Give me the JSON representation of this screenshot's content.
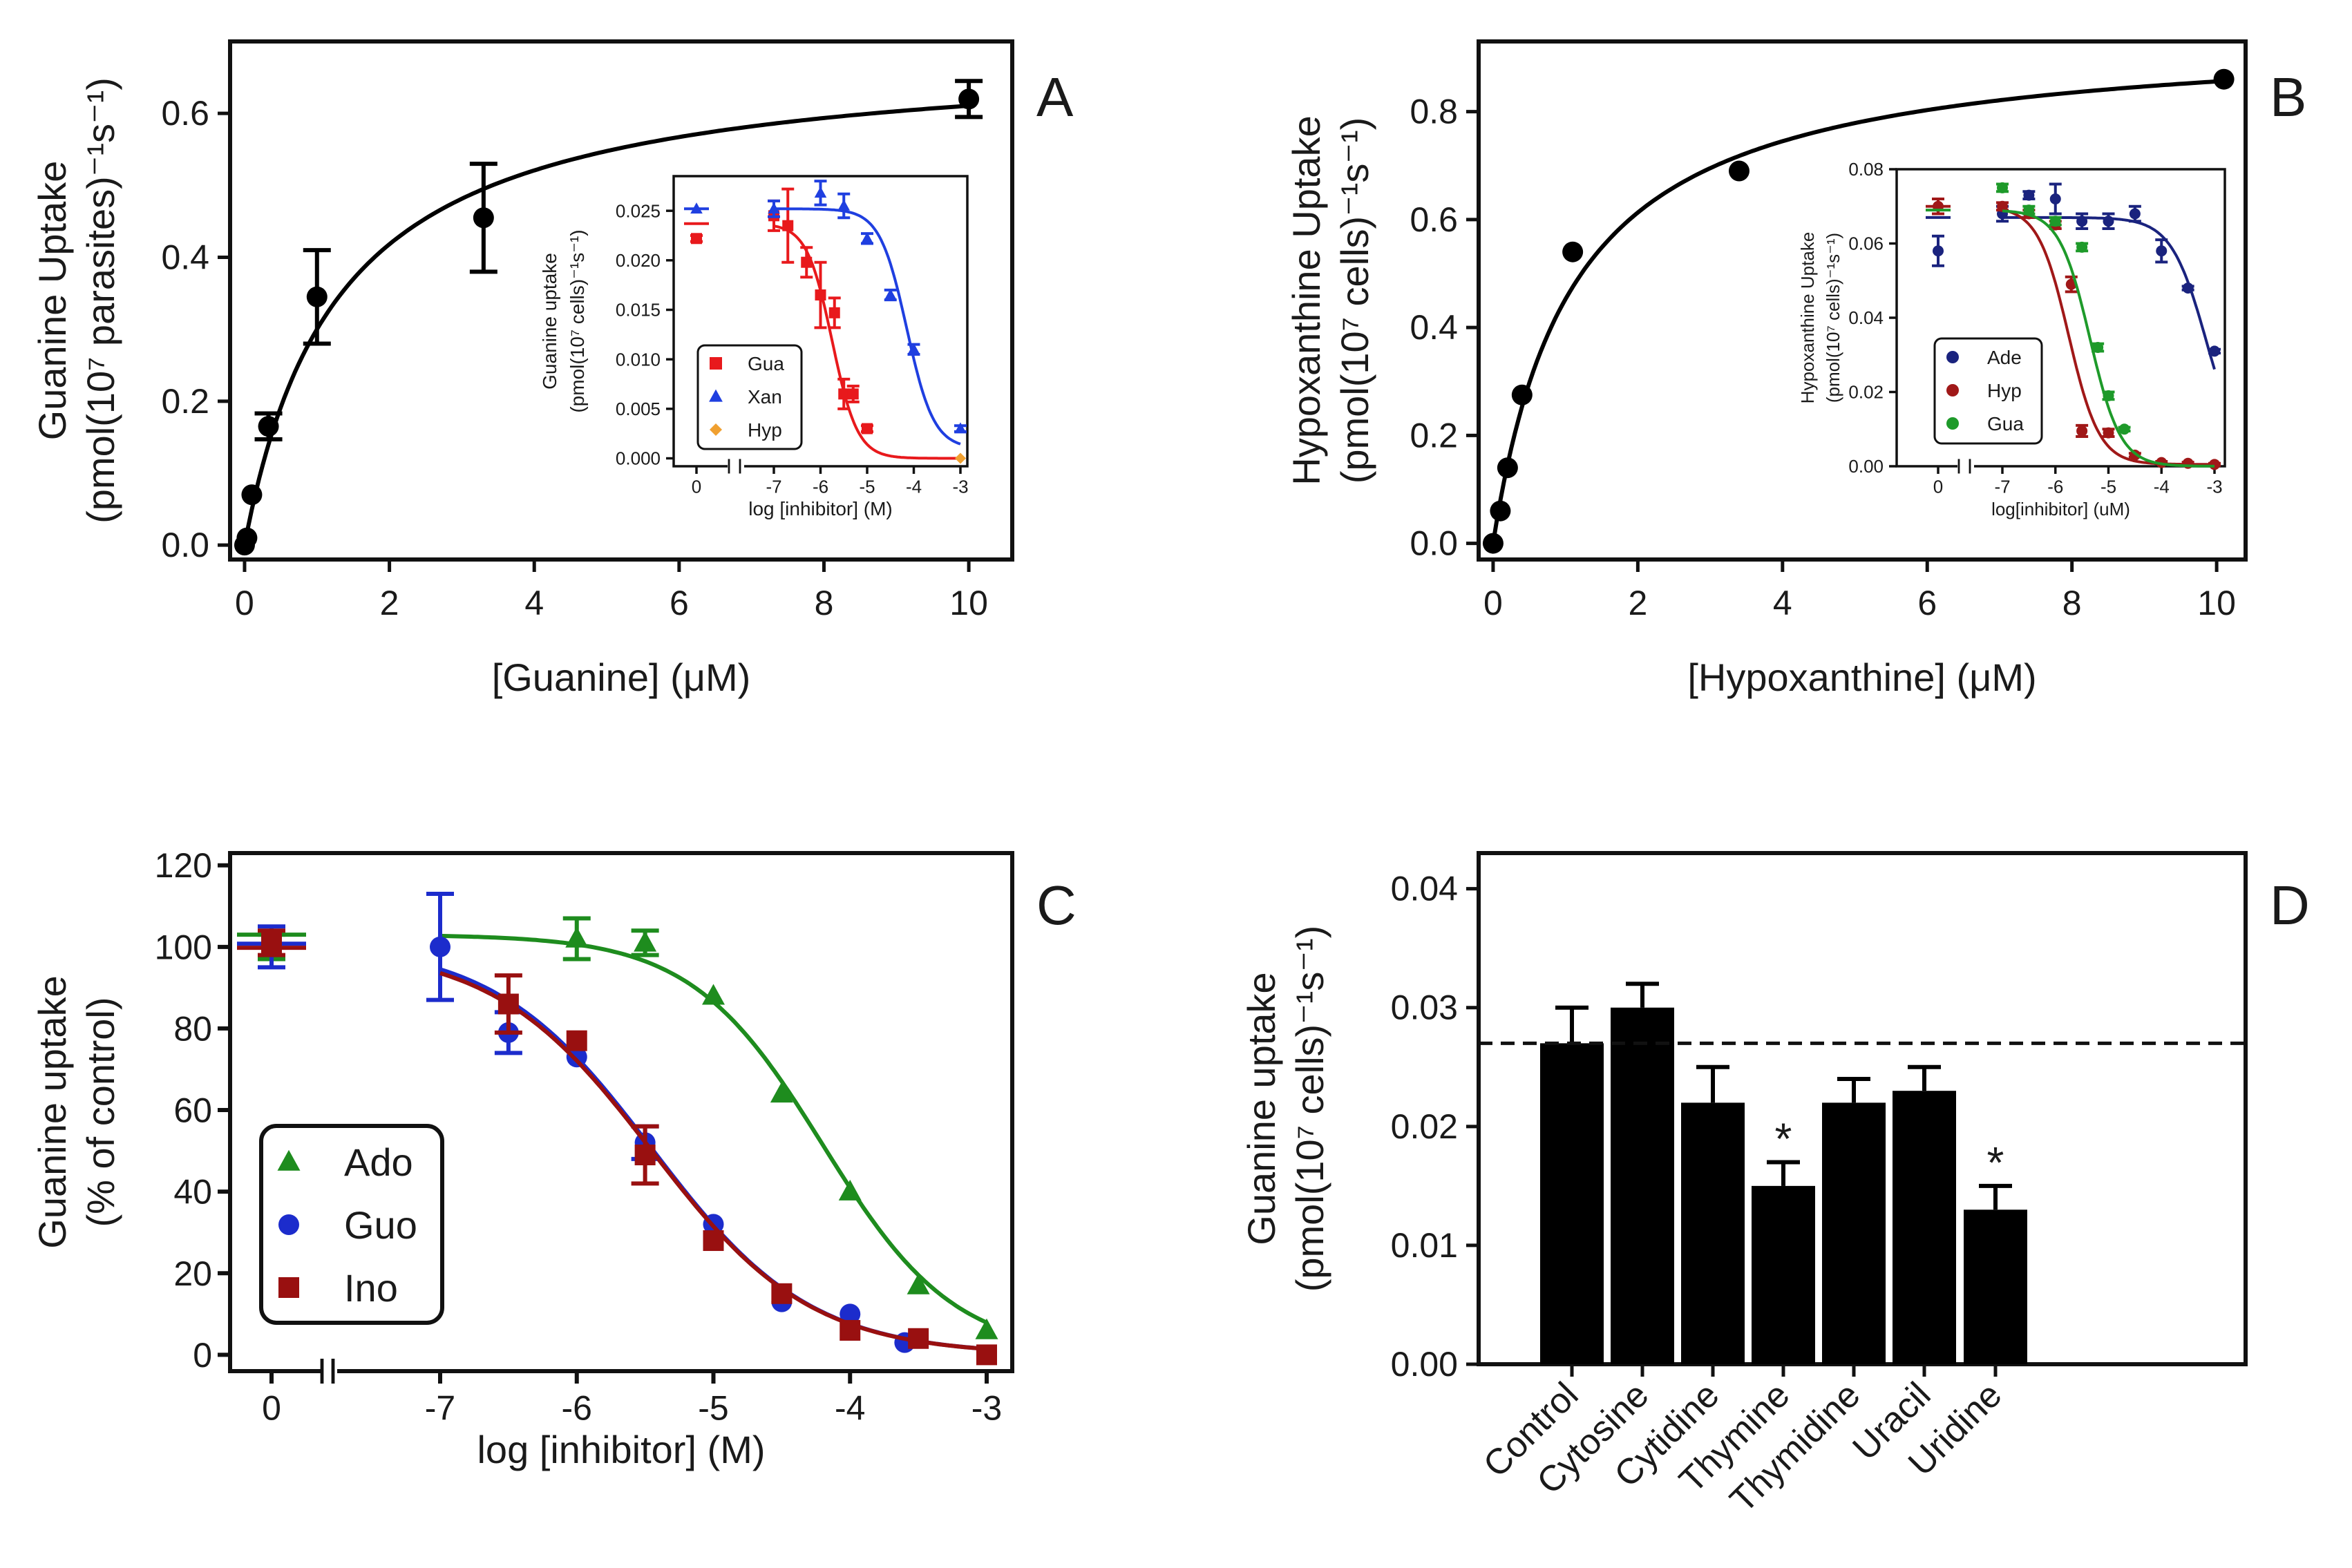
{
  "panels": {
    "A": {
      "label": "A"
    },
    "B": {
      "label": "B"
    },
    "C": {
      "label": "C"
    },
    "D": {
      "label": "D"
    }
  },
  "chart_data": [
    {
      "id": "A",
      "type": "scatter",
      "title": "",
      "xlabel": "[Guanine] (μM)",
      "ylabel_line1": "Guanine Uptake",
      "ylabel_line2": "(pmol(10⁷ parasites)⁻¹s⁻¹)",
      "xlim": [
        -0.2,
        10.6
      ],
      "ylim": [
        -0.02,
        0.7
      ],
      "xticks": [
        0,
        2,
        4,
        6,
        8,
        10
      ],
      "xtick_labels": [
        "0",
        "2",
        "4",
        "6",
        "8",
        "10"
      ],
      "yticks": [
        0.0,
        0.2,
        0.4,
        0.6
      ],
      "ytick_labels": [
        "0.0",
        "0.2",
        "0.4",
        "0.6"
      ],
      "series": [
        {
          "name": "Guanine",
          "color": "#000000",
          "x": [
            0.0,
            0.033,
            0.1,
            0.33,
            1.0,
            3.3,
            10.0
          ],
          "y": [
            0.0,
            0.01,
            0.07,
            0.165,
            0.345,
            0.455,
            0.62
          ],
          "err": [
            0.0,
            0.0,
            0.0,
            0.018,
            0.065,
            0.075,
            0.025
          ],
          "fit": {
            "model": "michaelis-menten",
            "vmax": 0.69,
            "km": 1.3
          }
        }
      ],
      "inset": {
        "type": "scatter",
        "xlabel": "log [inhibitor] (M)",
        "ylabel_line1": "Guanine uptake",
        "ylabel_line2": "(pmol(10⁷ cells)⁻¹s⁻¹)",
        "xticks": [
          0,
          -7,
          -6,
          -5,
          -4,
          -3
        ],
        "xtick_labels": [
          "0",
          "-7",
          "-6",
          "-5",
          "-4",
          "-3"
        ],
        "yticks": [
          0.0,
          0.005,
          0.01,
          0.015,
          0.02,
          0.025
        ],
        "ytick_labels": [
          "0.000",
          "0.005",
          "0.010",
          "0.015",
          "0.020",
          "0.025"
        ],
        "ylim": [
          -0.0008,
          0.0285
        ],
        "legend": [
          "Gua",
          "Xan",
          "Hyp"
        ],
        "series": [
          {
            "name": "Gua",
            "color": "#e8191c",
            "marker": "square",
            "x": [
              0,
              -7,
              -6.7,
              -6.3,
              -6.0,
              -5.7,
              -5.5,
              -5.3,
              -5.0
            ],
            "y": [
              0.0222,
              0.0245,
              0.0235,
              0.0198,
              0.0165,
              0.0147,
              0.0065,
              0.0065,
              0.003
            ],
            "err": [
              0.0003,
              0.0015,
              0.0037,
              0.0015,
              0.0033,
              0.0015,
              0.0015,
              0.0008,
              0.0003
            ],
            "fit": {
              "top": 0.0237,
              "bottom": 0.0,
              "logIC50": -5.75,
              "hill": 1.6
            }
          },
          {
            "name": "Xan",
            "color": "#1f3fe0",
            "marker": "triangle",
            "x": [
              0,
              -7,
              -6.0,
              -5.5,
              -5.0,
              -4.5,
              -4.0,
              -3.0
            ],
            "y": [
              0.0252,
              0.0252,
              0.0268,
              0.0255,
              0.0222,
              0.0165,
              0.011,
              0.003
            ],
            "err": [
              0,
              0.0008,
              0.0012,
              0.0012,
              0.0005,
              0.0005,
              0.0005,
              0.0003
            ],
            "fit": {
              "top": 0.0252,
              "bottom": 0.001,
              "logIC50": -4.15,
              "hill": 1.5
            }
          },
          {
            "name": "Hyp",
            "color": "#f0a030",
            "marker": "diamond",
            "x": [
              -3.0
            ],
            "y": [
              0.0
            ],
            "err": [
              0.0
            ]
          }
        ]
      }
    },
    {
      "id": "B",
      "type": "scatter",
      "title": "",
      "xlabel": "[Hypoxanthine] (μM)",
      "ylabel_line1": "Hypoxanthine Uptake",
      "ylabel_line2": "(pmol(10⁷ cells)⁻¹s⁻¹)",
      "xlim": [
        -0.2,
        10.4
      ],
      "ylim": [
        -0.03,
        0.93
      ],
      "xticks": [
        0,
        2,
        4,
        6,
        8,
        10
      ],
      "xtick_labels": [
        "0",
        "2",
        "4",
        "6",
        "8",
        "10"
      ],
      "yticks": [
        0.0,
        0.2,
        0.4,
        0.6,
        0.8
      ],
      "ytick_labels": [
        "0.0",
        "0.2",
        "0.4",
        "0.6",
        "0.8"
      ],
      "series": [
        {
          "name": "Hypoxanthine",
          "color": "#000000",
          "x": [
            0.0,
            0.1,
            0.2,
            0.4,
            1.1,
            3.4,
            10.1
          ],
          "y": [
            0.0,
            0.06,
            0.14,
            0.275,
            0.54,
            0.69,
            0.86
          ],
          "err": [
            0,
            0,
            0,
            0,
            0,
            0,
            0
          ],
          "fit": {
            "model": "michaelis-menten",
            "vmax": 0.95,
            "km": 1.1
          }
        }
      ],
      "inset": {
        "type": "scatter",
        "xlabel": "log[inhibitor] (uM)",
        "ylabel_line1": "Hypoxanthine Uptake",
        "ylabel_line2": "(pmol(10⁷ cells)⁻¹s⁻¹)",
        "xticks": [
          0,
          -7,
          -6,
          -5,
          -4,
          -3
        ],
        "xtick_labels": [
          "0",
          "-7",
          "-6",
          "-5",
          "-4",
          "-3"
        ],
        "yticks": [
          0.0,
          0.02,
          0.04,
          0.06,
          0.08
        ],
        "ytick_labels": [
          "0.00",
          "0.02",
          "0.04",
          "0.06",
          "0.08"
        ],
        "ylim": [
          0.0,
          0.08
        ],
        "legend": [
          "Ade",
          "Hyp",
          "Gua"
        ],
        "series": [
          {
            "name": "Ade",
            "color": "#1a237e",
            "marker": "circle",
            "x": [
              0,
              -7,
              -6.5,
              -6.0,
              -5.5,
              -5.0,
              -4.5,
              -4.0,
              -3.5,
              -3.0
            ],
            "y": [
              0.058,
              0.068,
              0.073,
              0.072,
              0.066,
              0.066,
              0.068,
              0.058,
              0.048,
              0.031
            ],
            "err": [
              0.004,
              0.002,
              0.001,
              0.004,
              0.002,
              0.002,
              0.002,
              0.003,
              0.0005,
              0.0005
            ],
            "fit": {
              "top": 0.067,
              "bottom": 0.0,
              "logIC50": -3.15,
              "hill": 1.3
            }
          },
          {
            "name": "Hyp",
            "color": "#a01818",
            "marker": "circle",
            "x": [
              0,
              -7,
              -6.5,
              -6.0,
              -5.7,
              -5.5,
              -5.0,
              -4.5,
              -4.0,
              -3.5,
              -3.0
            ],
            "y": [
              0.07,
              0.07,
              0.068,
              0.065,
              0.049,
              0.0095,
              0.009,
              0.003,
              0.001,
              0.0008,
              0.0005
            ],
            "err": [
              0.002,
              0.001,
              0.001,
              0.001,
              0.002,
              0.0015,
              0.001,
              0.0005,
              0.0003,
              0.0003,
              0.0003
            ],
            "fit": {
              "top": 0.07,
              "bottom": 0.0005,
              "logIC50": -5.75,
              "hill": 1.5
            }
          },
          {
            "name": "Gua",
            "color": "#1e9a2a",
            "marker": "circle",
            "x": [
              -7,
              -6.5,
              -6.0,
              -5.5,
              -5.2,
              -5.0,
              -4.7
            ],
            "y": [
              0.075,
              0.069,
              0.066,
              0.059,
              0.032,
              0.019,
              0.01
            ],
            "err": [
              0.001,
              0.001,
              0.001,
              0.001,
              0.001,
              0.001,
              0.0005
            ],
            "fit": {
              "top": 0.069,
              "bottom": 0.0,
              "logIC50": -5.35,
              "hill": 1.5
            }
          }
        ]
      }
    },
    {
      "id": "C",
      "type": "scatter",
      "title": "",
      "xlabel": "log [inhibitor] (M)",
      "ylabel_line1": "Guanine uptake",
      "ylabel_line2": "(% of control)",
      "ylim": [
        -4,
        123
      ],
      "xticks": [
        0,
        -7,
        -6,
        -5,
        -4,
        -3
      ],
      "xtick_labels": [
        "0",
        "-7",
        "-6",
        "-5",
        "-4",
        "-3"
      ],
      "yticks": [
        0,
        20,
        40,
        60,
        80,
        100,
        120
      ],
      "ytick_labels": [
        "0",
        "20",
        "40",
        "60",
        "80",
        "100",
        "120"
      ],
      "legend": [
        "Ado",
        "Guo",
        "Ino"
      ],
      "series": [
        {
          "name": "Ado",
          "color": "#1e8c1e",
          "marker": "triangle",
          "x": [
            0,
            -6.0,
            -5.5,
            -5.0,
            -4.5,
            -4.0,
            -3.5,
            -3.0
          ],
          "y": [
            100,
            102,
            101,
            88,
            64,
            40,
            17,
            6
          ],
          "err": [
            3,
            5,
            3,
            0,
            0,
            0,
            0,
            0
          ],
          "fit": {
            "top": 103,
            "bottom": 0,
            "logIC50": -4.2,
            "hill": 0.9
          }
        },
        {
          "name": "Guo",
          "color": "#1c2ccc",
          "marker": "circle",
          "x": [
            0,
            -7,
            -6.5,
            -6.0,
            -5.5,
            -5.0,
            -4.5,
            -4.0,
            -3.6
          ],
          "y": [
            100,
            100,
            79,
            73,
            52,
            32,
            13,
            10,
            3
          ],
          "err": [
            5,
            13,
            5,
            0,
            4,
            0,
            0,
            0,
            0
          ],
          "fit": {
            "top": 101,
            "bottom": 0,
            "logIC50": -5.45,
            "hill": 0.75
          }
        },
        {
          "name": "Ino",
          "color": "#991010",
          "marker": "square",
          "x": [
            0,
            -6.5,
            -6.0,
            -5.5,
            -5.0,
            -4.5,
            -4.0,
            -3.5,
            -3.0
          ],
          "y": [
            101,
            86,
            77,
            49,
            28,
            15,
            6,
            4,
            0
          ],
          "err": [
            3,
            7,
            0,
            7,
            0,
            0,
            0,
            0,
            0
          ],
          "fit": {
            "top": 100,
            "bottom": 0,
            "logIC50": -5.45,
            "hill": 0.75
          }
        }
      ]
    },
    {
      "id": "D",
      "type": "bar",
      "title": "",
      "xlabel": "",
      "ylabel_line1": "Guanine uptake",
      "ylabel_line2": "(pmol(10⁷ cells)⁻¹s⁻¹)",
      "ylim": [
        0,
        0.043
      ],
      "yticks": [
        0.0,
        0.01,
        0.02,
        0.03,
        0.04
      ],
      "ytick_labels": [
        "0.00",
        "0.01",
        "0.02",
        "0.03",
        "0.04"
      ],
      "categories": [
        "Control",
        "Cytosine",
        "Cytidine",
        "Thymine",
        "Thymidine",
        "Uracil",
        "Uridine"
      ],
      "values": [
        0.027,
        0.03,
        0.022,
        0.015,
        0.022,
        0.023,
        0.013
      ],
      "err": [
        0.003,
        0.002,
        0.003,
        0.002,
        0.002,
        0.002,
        0.002
      ],
      "significance": [
        "",
        "",
        "",
        "*",
        "",
        "",
        "*"
      ],
      "reference_line": 0.027,
      "color": "#000000"
    }
  ]
}
